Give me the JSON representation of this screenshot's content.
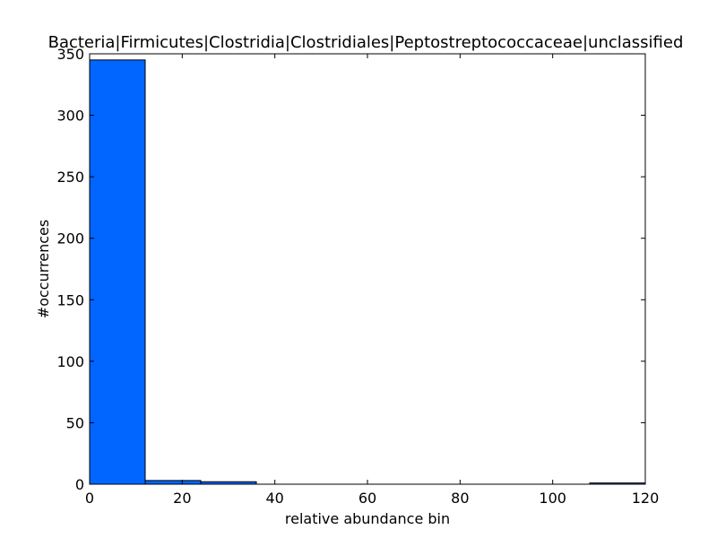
{
  "chart_data": {
    "type": "bar",
    "title": "Bacteria|Firmicutes|Clostridia|Clostridiales|Peptostreptococcaceae|unclassified",
    "xlabel": "relative abundance bin",
    "ylabel": "#occurrences",
    "xlim": [
      0,
      120
    ],
    "ylim": [
      0,
      350
    ],
    "xticks": [
      0,
      20,
      40,
      60,
      80,
      100,
      120
    ],
    "yticks": [
      0,
      50,
      100,
      150,
      200,
      250,
      300,
      350
    ],
    "bins": [
      {
        "x0": 0,
        "x1": 12,
        "value": 345
      },
      {
        "x0": 12,
        "x1": 24,
        "value": 3
      },
      {
        "x0": 24,
        "x1": 36,
        "value": 2
      },
      {
        "x0": 36,
        "x1": 48,
        "value": 0
      },
      {
        "x0": 48,
        "x1": 60,
        "value": 0
      },
      {
        "x0": 60,
        "x1": 72,
        "value": 0
      },
      {
        "x0": 72,
        "x1": 84,
        "value": 0
      },
      {
        "x0": 84,
        "x1": 96,
        "value": 0
      },
      {
        "x0": 96,
        "x1": 108,
        "value": 0
      },
      {
        "x0": 108,
        "x1": 120,
        "value": 1
      }
    ],
    "bar_color": "#0066ff",
    "grid": false
  }
}
